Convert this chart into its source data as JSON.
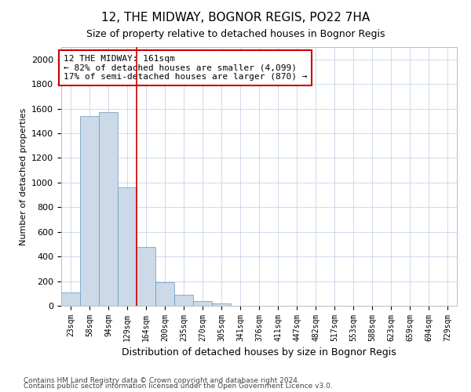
{
  "title": "12, THE MIDWAY, BOGNOR REGIS, PO22 7HA",
  "subtitle": "Size of property relative to detached houses in Bognor Regis",
  "xlabel": "Distribution of detached houses by size in Bognor Regis",
  "ylabel": "Number of detached properties",
  "footnote1": "Contains HM Land Registry data © Crown copyright and database right 2024.",
  "footnote2": "Contains public sector information licensed under the Open Government Licence v3.0.",
  "annotation_line1": "12 THE MIDWAY: 161sqm",
  "annotation_line2": "← 82% of detached houses are smaller (4,099)",
  "annotation_line3": "17% of semi-detached houses are larger (870) →",
  "bar_color": "#ccd9e8",
  "bar_edge_color": "#6699bb",
  "vline_color": "#cc0000",
  "vline_x_index": 4,
  "categories": [
    "23sqm",
    "58sqm",
    "94sqm",
    "129sqm",
    "164sqm",
    "200sqm",
    "235sqm",
    "270sqm",
    "305sqm",
    "341sqm",
    "376sqm",
    "411sqm",
    "447sqm",
    "482sqm",
    "517sqm",
    "553sqm",
    "588sqm",
    "623sqm",
    "659sqm",
    "694sqm",
    "729sqm"
  ],
  "values": [
    110,
    1540,
    1570,
    960,
    480,
    190,
    90,
    40,
    20,
    0,
    0,
    0,
    0,
    0,
    0,
    0,
    0,
    0,
    0,
    0,
    0
  ],
  "ylim": [
    0,
    2100
  ],
  "yticks": [
    0,
    200,
    400,
    600,
    800,
    1000,
    1200,
    1400,
    1600,
    1800,
    2000
  ],
  "background_color": "#ffffff",
  "grid_color": "#c8d4e8"
}
